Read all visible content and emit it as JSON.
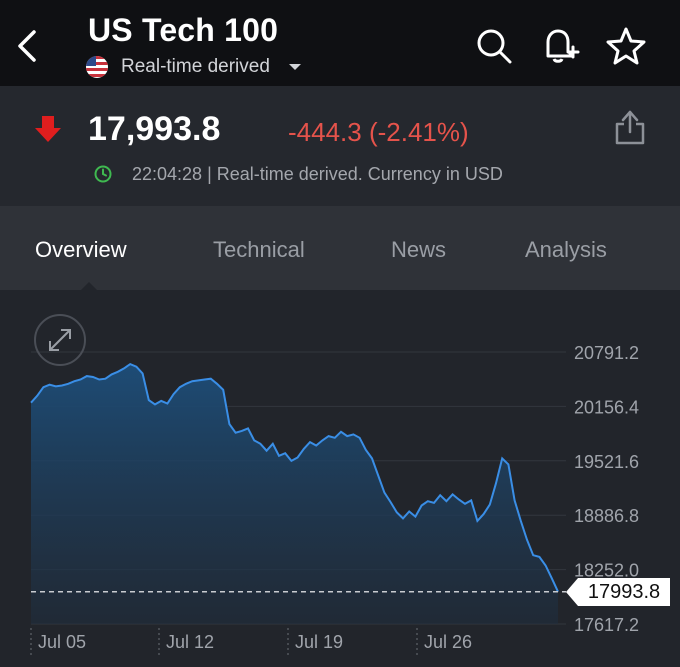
{
  "header": {
    "title": "US Tech 100",
    "subtitle": "Real-time derived",
    "back_icon": "chevron-left-icon",
    "search_icon": "search-icon",
    "alert_icon": "bell-plus-icon",
    "favorite_icon": "star-icon"
  },
  "quote": {
    "price": "17,993.8",
    "change": "-444.3 (-2.41%)",
    "timestamp_info": "22:04:28 | Real-time derived. Currency in USD",
    "direction_icon": "red-down-arrow-icon",
    "clock_icon": "clock-icon",
    "share_icon": "share-icon",
    "change_color": "#e5534b"
  },
  "tabs": [
    {
      "label": "Overview",
      "active": true
    },
    {
      "label": "Technical",
      "active": false
    },
    {
      "label": "News",
      "active": false
    },
    {
      "label": "Analysis",
      "active": false
    }
  ],
  "chart_data": {
    "type": "area",
    "y_ticks": [
      "20791.2",
      "20156.4",
      "19521.6",
      "18886.8",
      "18252.0",
      "17617.2"
    ],
    "x_ticks": [
      "Jul 05",
      "Jul 12",
      "Jul 19",
      "Jul 26"
    ],
    "ylim": [
      17617.2,
      20791.2
    ],
    "last_value": 17993.8,
    "last_value_label": "17993.8",
    "line_color": "#3a8ee6",
    "series": [
      {
        "values": [
          20200,
          20280,
          20380,
          20410,
          20390,
          20400,
          20420,
          20450,
          20470,
          20510,
          20500,
          20470,
          20480,
          20530,
          20560,
          20600,
          20650,
          20620,
          20540,
          20230,
          20180,
          20220,
          20190,
          20300,
          20380,
          20420,
          20450,
          20460,
          20470,
          20480,
          20420,
          20350,
          19950,
          19850,
          19870,
          19900,
          19760,
          19720,
          19640,
          19720,
          19580,
          19610,
          19520,
          19560,
          19660,
          19740,
          19700,
          19760,
          19810,
          19790,
          19860,
          19810,
          19830,
          19790,
          19650,
          19550,
          19350,
          19150,
          19040,
          18920,
          18850,
          18930,
          18870,
          19000,
          19050,
          19030,
          19120,
          19050,
          19130,
          19070,
          19020,
          19060,
          18820,
          18900,
          19010,
          19260,
          19550,
          19480,
          19060,
          18820,
          18600,
          18420,
          18400,
          18300,
          18150,
          17993.8
        ]
      }
    ]
  }
}
